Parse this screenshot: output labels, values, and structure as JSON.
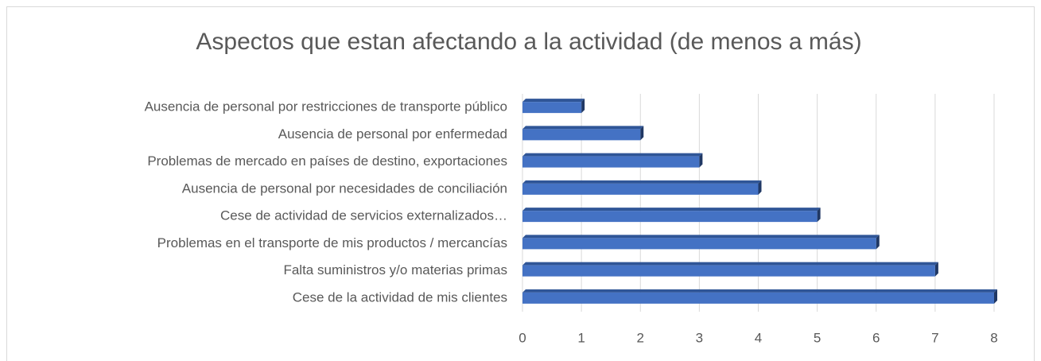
{
  "chart_data": {
    "type": "bar",
    "orientation": "horizontal",
    "title": "Aspectos que estan afectando a la actividad (de menos a más)",
    "categories": [
      "Ausencia de personal por restricciones de transporte público",
      "Ausencia de personal por enfermedad",
      "Problemas de mercado en países de destino, exportaciones",
      "Ausencia de personal por necesidades de conciliación",
      "Cese de actividad de servicios externalizados…",
      "Problemas en el transporte de mis productos / mercancías",
      "Falta suministros y/o materias primas",
      "Cese  de la actividad de mis clientes"
    ],
    "values": [
      1,
      2,
      3,
      4,
      5,
      6,
      7,
      8
    ],
    "color": "#4472c4",
    "xlim": [
      0,
      8
    ],
    "xticks": [
      0,
      1,
      2,
      3,
      4,
      5,
      6,
      7,
      8
    ],
    "grid": true
  }
}
